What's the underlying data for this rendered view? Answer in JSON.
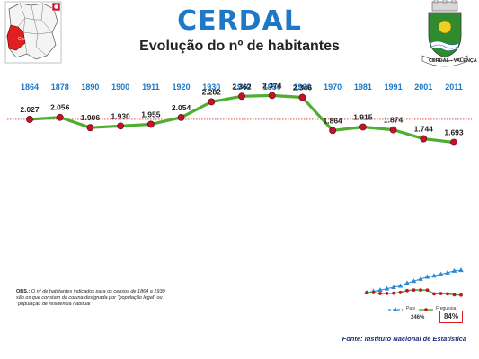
{
  "header": {
    "title": "CERDAL",
    "subtitle": "Evolução do nº de habitantes"
  },
  "emblem": {
    "caption": "CERDAL - VALENÇA"
  },
  "location_map": {
    "label": "Cerdal"
  },
  "chart_data": {
    "type": "line",
    "categories": [
      "1864",
      "1878",
      "1890",
      "1900",
      "1911",
      "1920",
      "1930",
      "1940",
      "1950",
      "1960",
      "1970",
      "1981",
      "1991",
      "2001",
      "2011"
    ],
    "values": [
      2027,
      2056,
      1906,
      1930,
      1955,
      2054,
      2282,
      2362,
      2374,
      2346,
      1864,
      1915,
      1874,
      1744,
      1693
    ],
    "value_labels": [
      "2.027",
      "2.056",
      "1.906",
      "1.930",
      "1.955",
      "2.054",
      "2.282",
      "2.362",
      "2.374",
      "2.346",
      "1.864",
      "1.915",
      "1.874",
      "1.744",
      "1.693"
    ],
    "reference_line": 2027,
    "colors": {
      "line": "#4fae2f",
      "marker": "#c8102e",
      "reference": "#e03030",
      "axis_labels": "#1e78c8"
    }
  },
  "mini_chart": {
    "legend_pais": "País",
    "legend_freguesia": "Freguesia",
    "pais_pct": "246%",
    "freguesia_pct": "84%",
    "pais_values": [
      1,
      1.08,
      1.17,
      1.26,
      1.35,
      1.44,
      1.62,
      1.75,
      1.89,
      2.03,
      2.1,
      2.2,
      2.3,
      2.42,
      2.46
    ],
    "freguesia_values": [
      1,
      1.01,
      0.94,
      0.95,
      0.96,
      1.01,
      1.13,
      1.17,
      1.17,
      1.16,
      0.92,
      0.94,
      0.92,
      0.86,
      0.84
    ],
    "colors": {
      "pais": "#2a8ad6",
      "freguesia": "#c8102e",
      "freguesia_line": "#4fae2f"
    }
  },
  "notes": {
    "obs_label": "OBS.:",
    "obs_text": "O nº de habitantes indicados para os censos de 1864 a 1930 são os que constam da coluna designada por \"população legal\" ou \"população de residência habitual\""
  },
  "footer": {
    "source": "Fonte: Instituto Nacional de Estatística"
  }
}
